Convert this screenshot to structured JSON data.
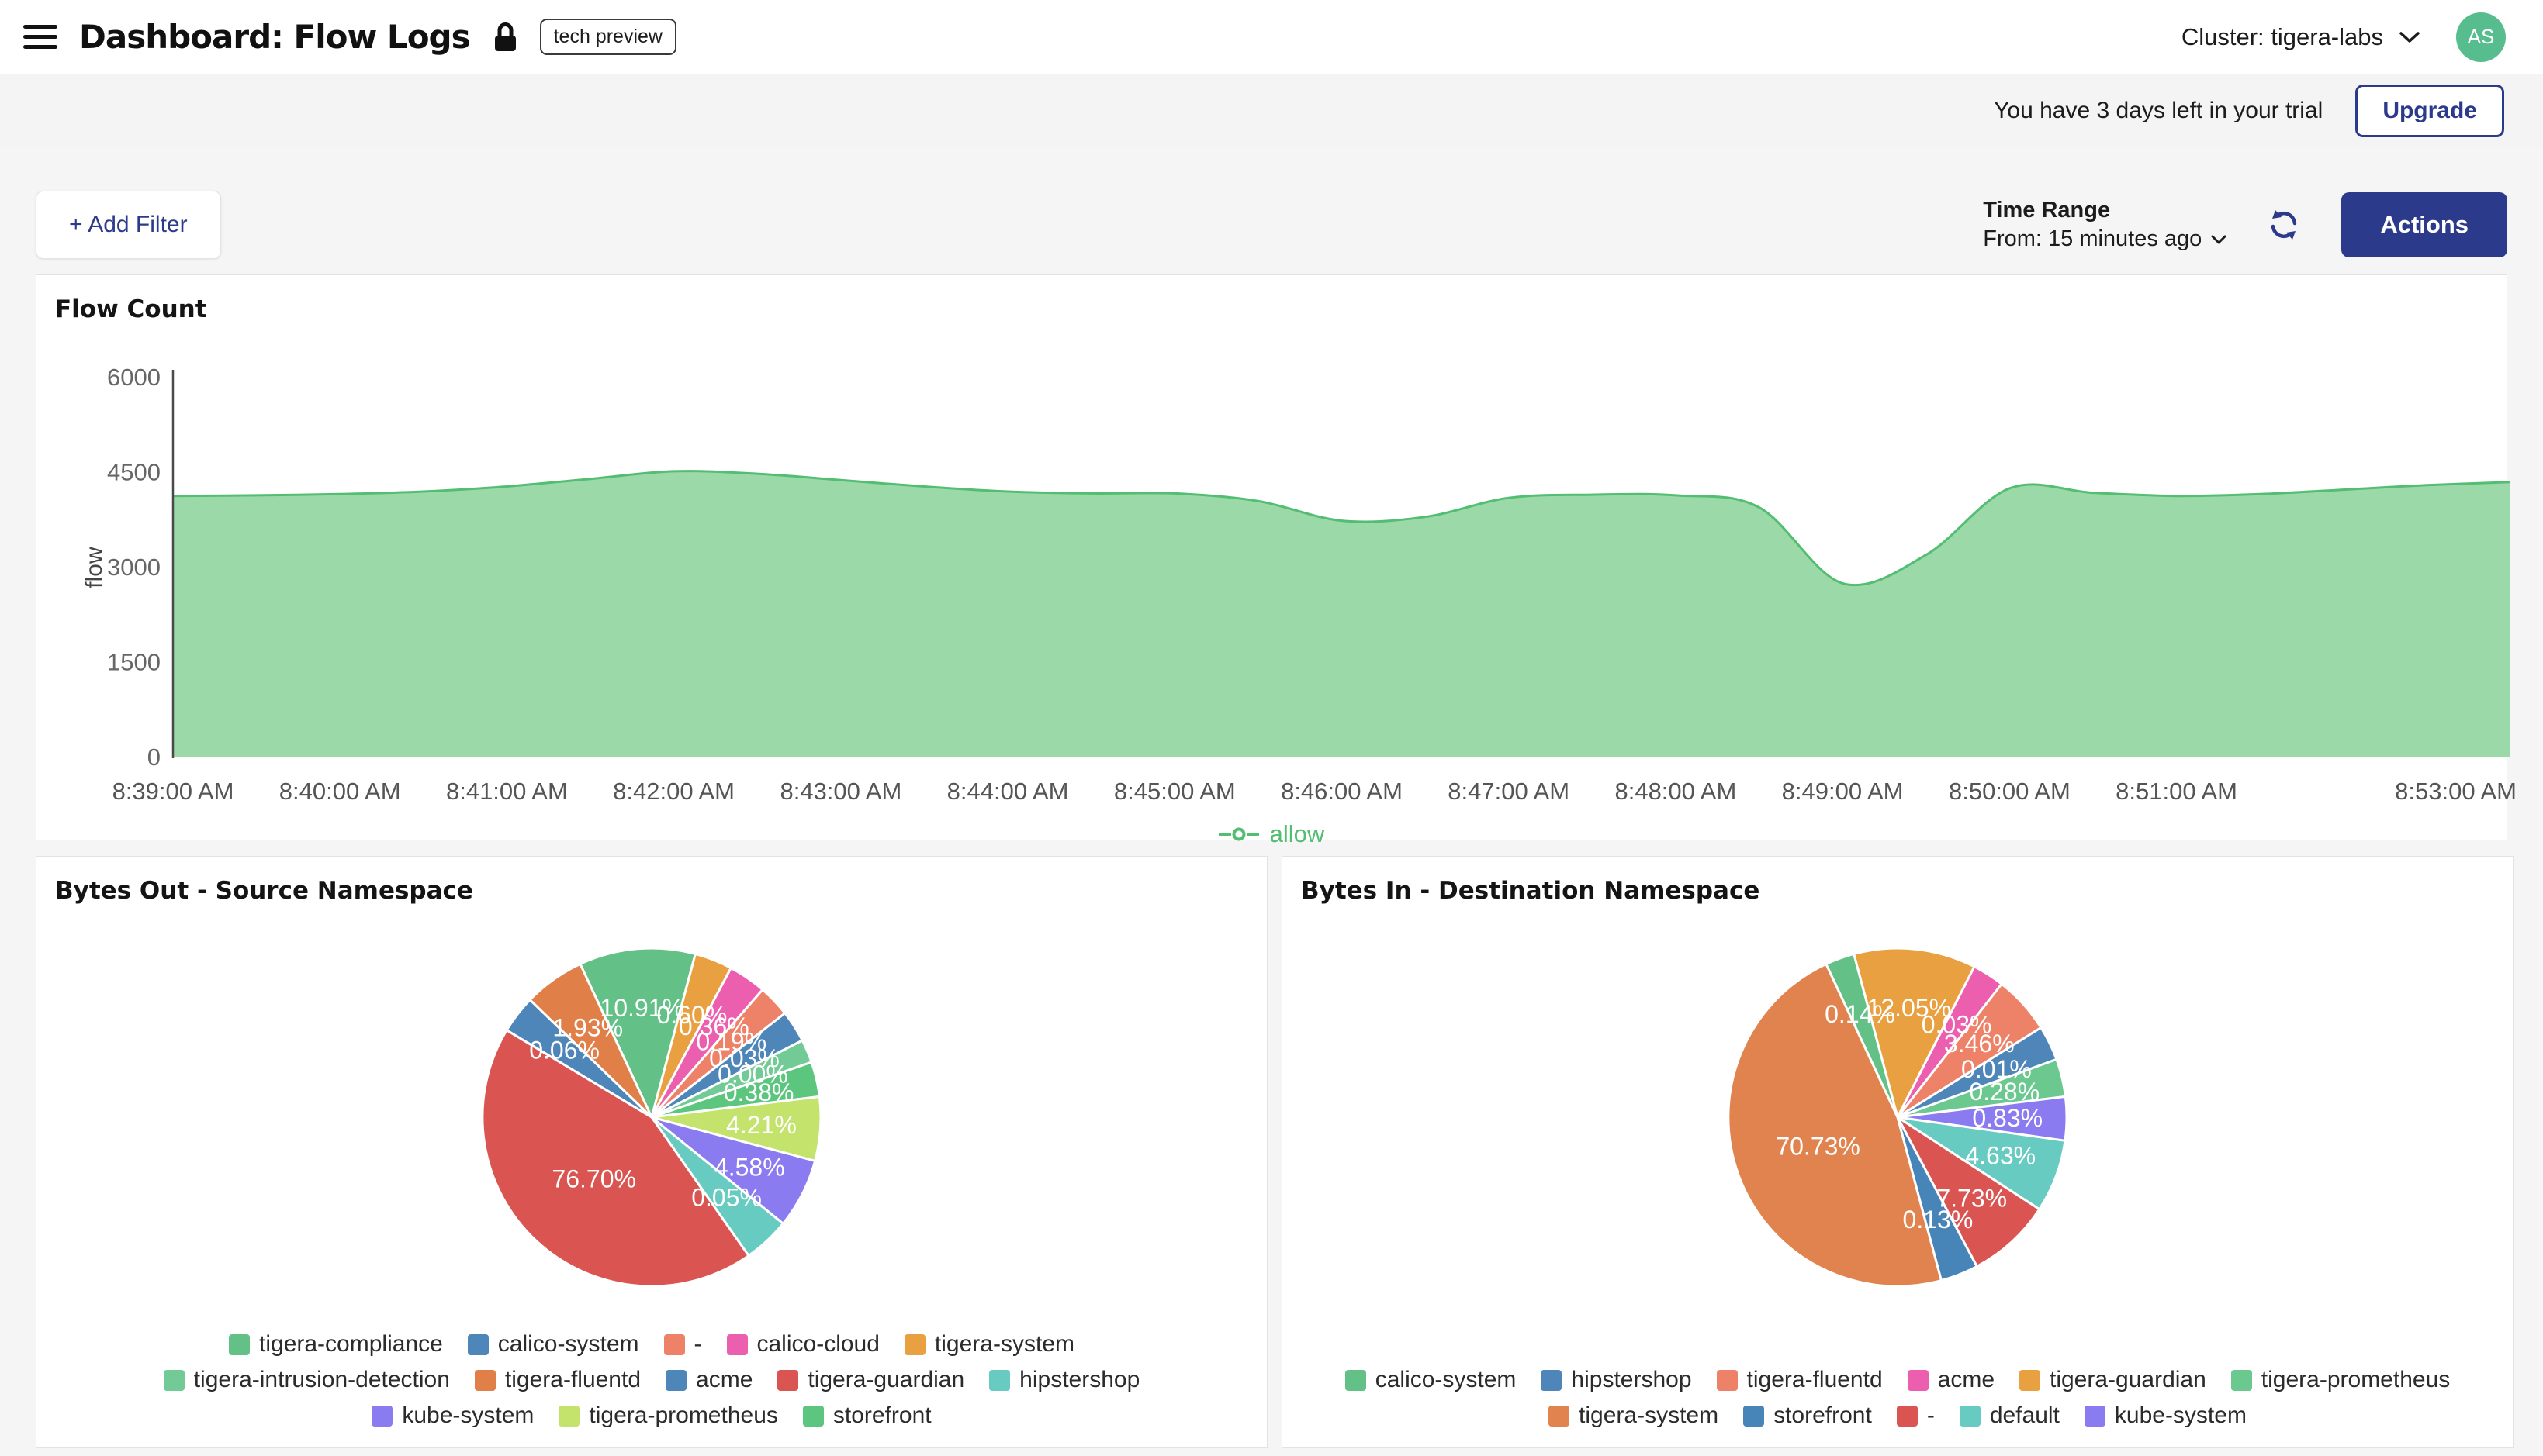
{
  "header": {
    "title": "Dashboard: Flow Logs",
    "badge": "tech preview",
    "cluster_label": "Cluster: tigera-labs",
    "avatar_initials": "AS"
  },
  "trial": {
    "message": "You have 3 days left in your trial",
    "upgrade_label": "Upgrade"
  },
  "toolbar": {
    "add_filter_label": "+ Add Filter",
    "time_range_label": "Time Range",
    "time_range_value": "From: 15 minutes ago",
    "actions_label": "Actions"
  },
  "colors": {
    "accent_navy": "#2c3a8c",
    "avatar_green": "#57bd8f",
    "area_fill": "#9cd9a8",
    "area_stroke": "#53bd72",
    "page_bg": "#f5f5f6"
  },
  "chart_data": [
    {
      "type": "area",
      "title": "Flow Count",
      "ylabel": "flow",
      "ylim": [
        0,
        6000
      ],
      "yticks": [
        0,
        1500,
        3000,
        4500,
        6000
      ],
      "legend": [
        {
          "label": "allow",
          "color": "#53bd72"
        }
      ],
      "legend_position": "bottom",
      "xticks": [
        {
          "m": 0,
          "label": "8:39:00 AM"
        },
        {
          "m": 1,
          "label": "8:40:00 AM"
        },
        {
          "m": 2,
          "label": "8:41:00 AM"
        },
        {
          "m": 3,
          "label": "8:42:00 AM"
        },
        {
          "m": 4,
          "label": "8:43:00 AM"
        },
        {
          "m": 5,
          "label": "8:44:00 AM"
        },
        {
          "m": 6,
          "label": "8:45:00 AM"
        },
        {
          "m": 7,
          "label": "8:46:00 AM"
        },
        {
          "m": 8,
          "label": "8:47:00 AM"
        },
        {
          "m": 9,
          "label": "8:48:00 AM"
        },
        {
          "m": 10,
          "label": "8:49:00 AM"
        },
        {
          "m": 11,
          "label": "8:50:00 AM"
        },
        {
          "m": 12,
          "label": "8:51:00 AM"
        },
        {
          "m": 14,
          "label": "8:53:00 AM"
        }
      ],
      "x_step_seconds": 30,
      "series": [
        {
          "name": "allow",
          "color": "#53bd72",
          "fill": "#9cd9a8",
          "values": [
            4130,
            4140,
            4160,
            4200,
            4280,
            4400,
            4520,
            4480,
            4380,
            4280,
            4200,
            4170,
            4170,
            4050,
            3740,
            3800,
            4100,
            4150,
            4140,
            3950,
            2750,
            3200,
            4250,
            4180,
            4130,
            4160,
            4230,
            4300,
            4350
          ]
        }
      ]
    },
    {
      "type": "pie",
      "title": "Bytes Out - Source Namespace",
      "rotation": -25,
      "slices": [
        {
          "name": "tigera-compliance",
          "pct": 10.91,
          "color": "#63c188",
          "deg": 40
        },
        {
          "name": "tigera-system",
          "pct": 0.6,
          "color": "#e8a040",
          "deg": 13
        },
        {
          "name": "calico-cloud",
          "pct": 0.36,
          "color": "#ec5fae",
          "deg": 13
        },
        {
          "name": "-",
          "pct": 0.19,
          "color": "#ee8268",
          "deg": 11
        },
        {
          "name": "calico-system",
          "pct": 0.03,
          "color": "#4e86ba",
          "deg": 11
        },
        {
          "name": "tigera-intrusion-detection",
          "pct": 0.0,
          "color": "#72cb96",
          "deg": 8
        },
        {
          "name": "storefront",
          "pct": 0.38,
          "color": "#5cc57e",
          "deg": 12
        },
        {
          "name": "tigera-prometheus",
          "pct": 4.21,
          "color": "#c3e36c",
          "deg": 22
        },
        {
          "name": "kube-system",
          "pct": 4.58,
          "color": "#8b7bf0",
          "deg": 24
        },
        {
          "name": "hipstershop",
          "pct": 0.05,
          "color": "#68cbc1",
          "deg": 16
        },
        {
          "name": "tigera-guardian",
          "pct": 76.7,
          "color": "#da5552",
          "deg": 156
        },
        {
          "name": "acme",
          "pct": 0.06,
          "color": "#4e86ba",
          "deg": 13
        },
        {
          "name": "tigera-fluentd",
          "pct": 1.93,
          "color": "#e07f48",
          "deg": 21
        }
      ],
      "legend_rows": [
        [
          "tigera-compliance",
          "calico-system",
          "-",
          "calico-cloud",
          "tigera-system"
        ],
        [
          "tigera-intrusion-detection",
          "tigera-fluentd",
          "acme",
          "tigera-guardian",
          "hipstershop"
        ],
        [
          "kube-system",
          "tigera-prometheus",
          "storefront"
        ]
      ]
    },
    {
      "type": "pie",
      "title": "Bytes In - Destination Namespace",
      "rotation": -15,
      "slices": [
        {
          "name": "tigera-guardian",
          "pct": 12.05,
          "color": "#e8a040",
          "deg": 42
        },
        {
          "name": "acme",
          "pct": 0.03,
          "color": "#ec5fae",
          "deg": 11
        },
        {
          "name": "tigera-fluentd",
          "pct": 3.46,
          "color": "#ee8268",
          "deg": 20
        },
        {
          "name": "hipstershop",
          "pct": 0.01,
          "color": "#4e86ba",
          "deg": 12
        },
        {
          "name": "tigera-prometheus",
          "pct": 0.28,
          "color": "#6bc88f",
          "deg": 13
        },
        {
          "name": "kube-system",
          "pct": 0.83,
          "color": "#8b7bf0",
          "deg": 15
        },
        {
          "name": "default",
          "pct": 4.63,
          "color": "#68cbc1",
          "deg": 25
        },
        {
          "name": "-",
          "pct": 7.73,
          "color": "#da5552",
          "deg": 29
        },
        {
          "name": "storefront",
          "pct": 0.13,
          "color": "#4784b8",
          "deg": 13
        },
        {
          "name": "tigera-system",
          "pct": 70.73,
          "color": "#e0834e",
          "deg": 170
        },
        {
          "name": "calico-system",
          "pct": 0.14,
          "color": "#63c188",
          "deg": 10
        }
      ],
      "legend_rows": [
        [
          "calico-system",
          "hipstershop",
          "tigera-fluentd",
          "acme",
          "tigera-guardian",
          "tigera-prometheus"
        ],
        [
          "tigera-system",
          "storefront",
          "-",
          "default",
          "kube-system"
        ]
      ]
    }
  ]
}
